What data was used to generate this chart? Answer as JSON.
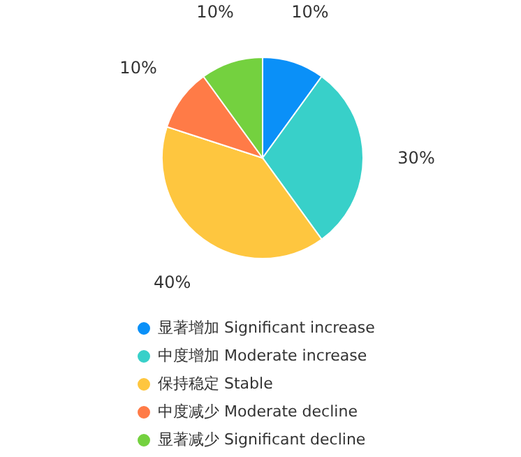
{
  "chart_data": {
    "type": "pie",
    "categories": [
      "显著增加 Significant increase",
      "中度增加 Moderate increase",
      "保持稳定 Stable",
      "中度减少 Moderate decline",
      "显著减少 Significant decline"
    ],
    "values": [
      10,
      30,
      40,
      10,
      10
    ],
    "colors": [
      "#0a90f8",
      "#38d0c9",
      "#fec63f",
      "#ff7b47",
      "#74d13f"
    ],
    "value_labels": [
      "10%",
      "30%",
      "40%",
      "10%",
      "10%"
    ],
    "legend": "bottom"
  }
}
